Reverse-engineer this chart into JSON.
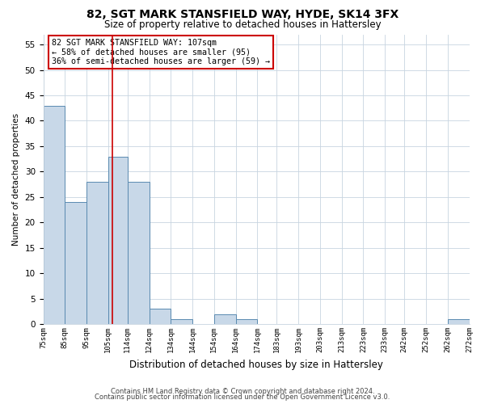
{
  "title": "82, SGT MARK STANSFIELD WAY, HYDE, SK14 3FX",
  "subtitle": "Size of property relative to detached houses in Hattersley",
  "xlabel": "Distribution of detached houses by size in Hattersley",
  "ylabel": "Number of detached properties",
  "bin_edges": [
    75,
    85,
    95,
    105,
    114,
    124,
    134,
    144,
    154,
    164,
    174,
    183,
    193,
    203,
    213,
    223,
    233,
    242,
    252,
    262,
    272
  ],
  "counts": [
    43,
    24,
    28,
    33,
    28,
    3,
    1,
    0,
    2,
    1,
    0,
    0,
    0,
    0,
    0,
    0,
    0,
    0,
    0,
    1
  ],
  "tick_labels": [
    "75sqm",
    "85sqm",
    "95sqm",
    "105sqm",
    "114sqm",
    "124sqm",
    "134sqm",
    "144sqm",
    "154sqm",
    "164sqm",
    "174sqm",
    "183sqm",
    "193sqm",
    "203sqm",
    "213sqm",
    "223sqm",
    "233sqm",
    "242sqm",
    "252sqm",
    "262sqm",
    "272sqm"
  ],
  "bar_color": "#c8d8e8",
  "bar_edge_color": "#5a8ab0",
  "vline_x": 107,
  "vline_color": "#cc0000",
  "annotation_line1": "82 SGT MARK STANSFIELD WAY: 107sqm",
  "annotation_line2": "← 58% of detached houses are smaller (95)",
  "annotation_line3": "36% of semi-detached houses are larger (59) →",
  "annotation_box_color": "#cc0000",
  "ylim": [
    0,
    57
  ],
  "yticks": [
    0,
    5,
    10,
    15,
    20,
    25,
    30,
    35,
    40,
    45,
    50,
    55
  ],
  "footer1": "Contains HM Land Registry data © Crown copyright and database right 2024.",
  "footer2": "Contains public sector information licensed under the Open Government Licence v3.0.",
  "bg_color": "#ffffff",
  "grid_color": "#c8d4e0"
}
